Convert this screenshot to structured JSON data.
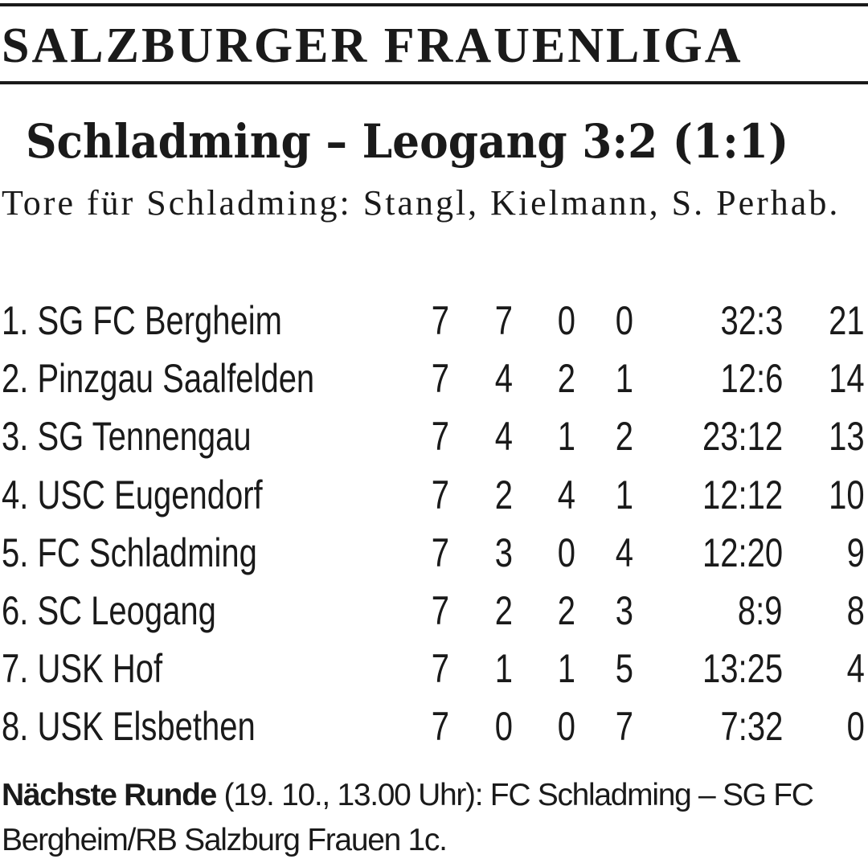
{
  "header": {
    "title": "SALZBURGER FRAUENLIGA"
  },
  "match": {
    "title": "Schladming – Leogang 3:2 (1:1)",
    "scorers": "Tore für Schladming: Stangl, Kielmann, S. Perhab."
  },
  "table": {
    "rows": [
      [
        "1. SG FC Bergheim",
        "7",
        "7",
        "0",
        "0",
        "32:3",
        "21"
      ],
      [
        "2. Pinzgau Saalfelden",
        "7",
        "4",
        "2",
        "1",
        "12:6",
        "14"
      ],
      [
        "3. SG Tennengau",
        "7",
        "4",
        "1",
        "2",
        "23:12",
        "13"
      ],
      [
        "4. USC Eugendorf",
        "7",
        "2",
        "4",
        "1",
        "12:12",
        "10"
      ],
      [
        "5. FC Schladming",
        "7",
        "3",
        "0",
        "4",
        "12:20",
        "9"
      ],
      [
        "6. SC Leogang",
        "7",
        "2",
        "2",
        "3",
        "8:9",
        "8"
      ],
      [
        "7. USK Hof",
        "7",
        "1",
        "1",
        "5",
        "13:25",
        "4"
      ],
      [
        "8. USK Elsbethen",
        "7",
        "0",
        "0",
        "7",
        "7:32",
        "0"
      ]
    ]
  },
  "next_round": {
    "label": "Nächste Runde",
    "text": "(19. 10., 13.00 Uhr): FC Schladming – SG FC Bergheim/RB Salzburg Frauen 1c."
  }
}
